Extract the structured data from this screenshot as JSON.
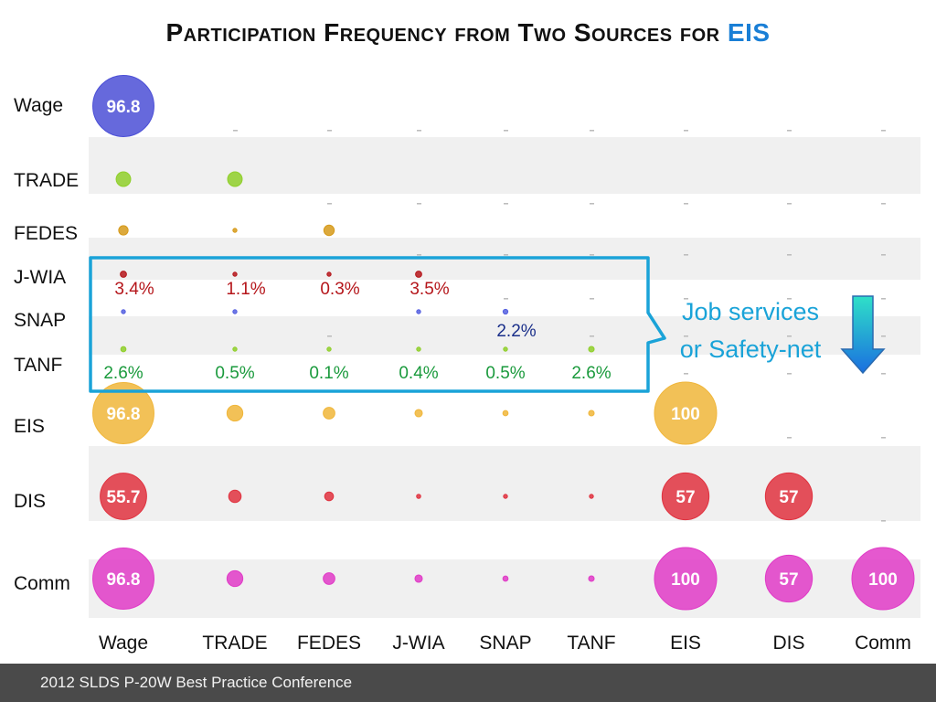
{
  "title": {
    "main": "Participation Frequency from Two Sources for",
    "highlight": "EIS"
  },
  "footer": "2012 SLDS P-20W Best Practice Conference",
  "chart_data": {
    "type": "bubble-matrix",
    "title": "Participation Frequency from Two Sources for EIS",
    "row_labels": [
      "Wage",
      "TRADE",
      "FEDES",
      "J-WIA",
      "SNAP",
      "TANF",
      "EIS",
      "DIS",
      "Comm"
    ],
    "col_labels": [
      "Wage",
      "TRADE",
      "FEDES",
      "J-WIA",
      "SNAP",
      "TANF",
      "EIS",
      "DIS",
      "Comm"
    ],
    "row_colors": [
      "#4b4fd6",
      "#8fcf2a",
      "#d69a1a",
      "#b5161b",
      "#5560e0",
      "#8fcf2a",
      "#f0b63a",
      "#e0323f",
      "#e03bc7"
    ],
    "cells": [
      [
        96.8,
        null,
        null,
        null,
        null,
        null,
        null,
        null,
        null
      ],
      [
        5.5,
        5.5,
        null,
        null,
        null,
        null,
        null,
        null,
        null
      ],
      [
        2.3,
        0.3,
        2.8,
        null,
        null,
        null,
        null,
        null,
        null
      ],
      [
        1.0,
        0.3,
        0.2,
        1.0,
        null,
        null,
        null,
        null,
        null
      ],
      [
        0.4,
        0.06,
        null,
        0.07,
        0.6,
        null,
        null,
        null,
        null
      ],
      [
        0.7,
        0.1,
        0.05,
        0.1,
        0.1,
        0.8,
        null,
        null,
        null
      ],
      [
        96.8,
        6.5,
        3.5,
        1.4,
        0.7,
        0.8,
        100,
        null,
        null
      ],
      [
        55.7,
        4.0,
        2.0,
        0.45,
        0.2,
        0.2,
        57,
        57,
        null
      ],
      [
        96.8,
        6.5,
        3.5,
        1.4,
        0.7,
        0.8,
        100,
        57,
        100
      ]
    ],
    "bubble_labels": [
      {
        "row": 0,
        "col": 0,
        "text": "96.8"
      },
      {
        "row": 6,
        "col": 0,
        "text": "96.8"
      },
      {
        "row": 6,
        "col": 6,
        "text": "100"
      },
      {
        "row": 7,
        "col": 0,
        "text": "55.7"
      },
      {
        "row": 7,
        "col": 6,
        "text": "57"
      },
      {
        "row": 7,
        "col": 7,
        "text": "57"
      },
      {
        "row": 8,
        "col": 0,
        "text": "96.8"
      },
      {
        "row": 8,
        "col": 6,
        "text": "100"
      },
      {
        "row": 8,
        "col": 7,
        "text": "57"
      },
      {
        "row": 8,
        "col": 8,
        "text": "100"
      }
    ],
    "annotations": {
      "jwia": {
        "values": [
          "3.4%",
          "1.1%",
          "0.3%",
          "3.5%"
        ],
        "color": "#b5161b"
      },
      "snap": {
        "values": [
          "2.2%"
        ],
        "color": "#1a2f8a"
      },
      "tanf": {
        "values": [
          "2.6%",
          "0.5%",
          "0.1%",
          "0.4%",
          "0.5%",
          "2.6%"
        ],
        "color": "#1a9a3c"
      }
    },
    "callout": {
      "line1": "Job services",
      "line2": "or Safety-net",
      "color": "#1aa3d8"
    },
    "colors": {
      "box": "#1aa3d8",
      "stripe": "#f0f0f0",
      "arrow_top": "#2fe0c8",
      "arrow_bottom": "#1a6fe0"
    }
  }
}
